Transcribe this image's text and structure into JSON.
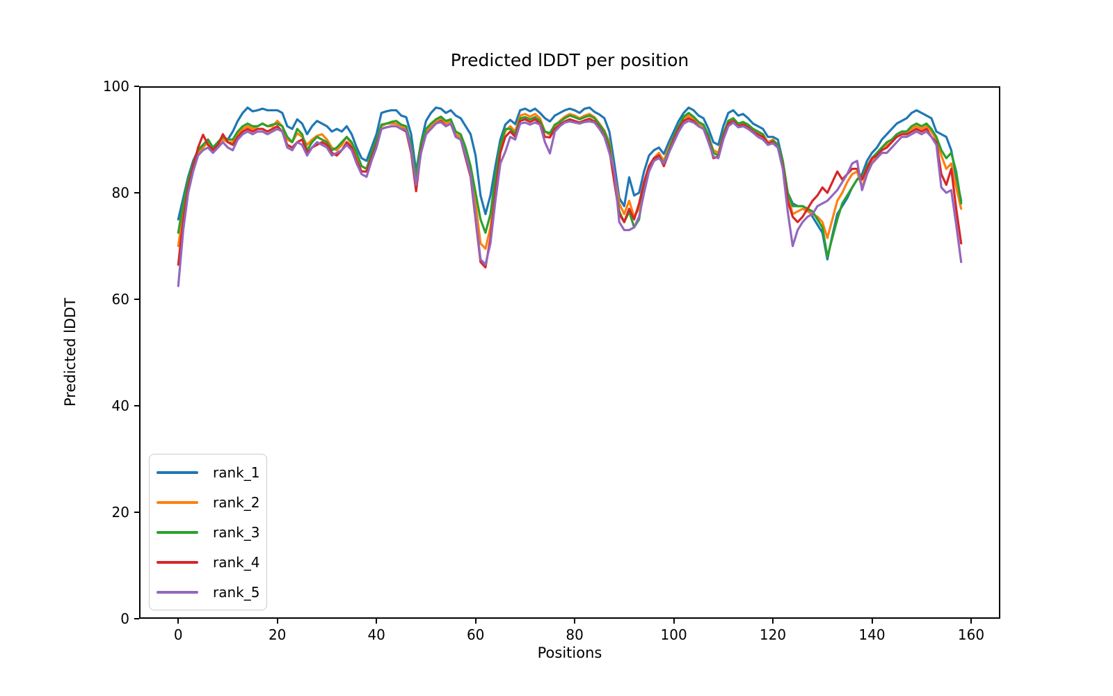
{
  "title": "Predicted lDDT per position",
  "xlabel": "Positions",
  "ylabel": "Predicted lDDT",
  "legend": {
    "position": "lower left",
    "entries": [
      {
        "label": "rank_1",
        "color": "#1f77b4"
      },
      {
        "label": "rank_2",
        "color": "#ff7f0e"
      },
      {
        "label": "rank_3",
        "color": "#2ca02c"
      },
      {
        "label": "rank_4",
        "color": "#d62728"
      },
      {
        "label": "rank_5",
        "color": "#9467bd"
      }
    ]
  },
  "chart_data": {
    "type": "line",
    "title": "Predicted lDDT per position",
    "xlabel": "Positions",
    "ylabel": "Predicted lDDT",
    "grid": false,
    "legend_position": "lower left",
    "xlim": [
      -7.9,
      165.9
    ],
    "ylim": [
      0,
      100
    ],
    "x_ticks": [
      0,
      20,
      40,
      60,
      80,
      100,
      120,
      140,
      160
    ],
    "y_ticks": [
      0,
      20,
      40,
      60,
      80,
      100
    ],
    "x": [
      0,
      1,
      2,
      3,
      4,
      5,
      6,
      7,
      8,
      9,
      10,
      11,
      12,
      13,
      14,
      15,
      16,
      17,
      18,
      19,
      20,
      21,
      22,
      23,
      24,
      25,
      26,
      27,
      28,
      29,
      30,
      31,
      32,
      33,
      34,
      35,
      36,
      37,
      38,
      39,
      40,
      41,
      42,
      43,
      44,
      45,
      46,
      47,
      48,
      49,
      50,
      51,
      52,
      53,
      54,
      55,
      56,
      57,
      58,
      59,
      60,
      61,
      62,
      63,
      64,
      65,
      66,
      67,
      68,
      69,
      70,
      71,
      72,
      73,
      74,
      75,
      76,
      77,
      78,
      79,
      80,
      81,
      82,
      83,
      84,
      85,
      86,
      87,
      88,
      89,
      90,
      91,
      92,
      93,
      94,
      95,
      96,
      97,
      98,
      99,
      100,
      101,
      102,
      103,
      104,
      105,
      106,
      107,
      108,
      109,
      110,
      111,
      112,
      113,
      114,
      115,
      116,
      117,
      118,
      119,
      120,
      121,
      122,
      123,
      124,
      125,
      126,
      127,
      128,
      129,
      130,
      131,
      132,
      133,
      134,
      135,
      136,
      137,
      138,
      139,
      140,
      141,
      142,
      143,
      144,
      145,
      146,
      147,
      148,
      149,
      150,
      151,
      152,
      153,
      154,
      155,
      156,
      157,
      158
    ],
    "series": [
      {
        "name": "rank_1",
        "color": "#1f77b4",
        "values": [
          75.0,
          79.0,
          83.0,
          86.0,
          88.0,
          89.0,
          90.0,
          88.5,
          89.5,
          90.5,
          90.0,
          91.5,
          93.5,
          95.0,
          96.0,
          95.3,
          95.5,
          95.8,
          95.5,
          95.5,
          95.5,
          95.0,
          92.5,
          92.0,
          93.8,
          93.0,
          91.0,
          92.5,
          93.5,
          93.0,
          92.5,
          91.5,
          92.0,
          91.5,
          92.5,
          91.0,
          88.5,
          86.5,
          86.0,
          88.5,
          91.0,
          95.0,
          95.3,
          95.5,
          95.5,
          94.5,
          94.2,
          91.0,
          84.0,
          89.5,
          93.5,
          95.0,
          96.0,
          95.8,
          95.0,
          95.5,
          94.5,
          94.0,
          92.5,
          91.0,
          87.0,
          79.5,
          76.0,
          79.5,
          85.0,
          90.0,
          92.8,
          93.7,
          92.9,
          95.5,
          95.8,
          95.3,
          95.8,
          95.0,
          94.0,
          93.4,
          94.5,
          95.0,
          95.5,
          95.8,
          95.5,
          95.0,
          95.8,
          96.0,
          95.2,
          94.7,
          94.0,
          91.5,
          85.5,
          79.0,
          77.5,
          82.9,
          79.5,
          80.0,
          84.0,
          87.0,
          88.0,
          88.5,
          87.3,
          89.5,
          91.5,
          93.5,
          95.0,
          96.0,
          95.5,
          94.5,
          94.0,
          92.0,
          89.5,
          89.0,
          92.5,
          95.0,
          95.5,
          94.5,
          94.8,
          94.0,
          93.0,
          92.5,
          92.0,
          90.5,
          90.5,
          90.0,
          86.0,
          80.0,
          78.0,
          77.5,
          77.5,
          77.0,
          75.5,
          74.0,
          72.5,
          67.5,
          72.0,
          76.0,
          77.5,
          79.0,
          81.0,
          82.5,
          83.5,
          86.0,
          87.5,
          88.5,
          90.0,
          91.0,
          92.0,
          93.0,
          93.5,
          94.0,
          95.0,
          95.5,
          95.0,
          94.5,
          94.0,
          91.5,
          91.0,
          90.5,
          88.0,
          83.0,
          78.5
        ]
      },
      {
        "name": "rank_2",
        "color": "#ff7f0e",
        "values": [
          70.0,
          76.5,
          81.5,
          85.0,
          87.5,
          88.5,
          89.5,
          88.0,
          89.0,
          90.0,
          89.5,
          89.5,
          91.0,
          92.0,
          92.5,
          92.0,
          92.5,
          93.0,
          92.5,
          92.5,
          93.5,
          92.5,
          90.0,
          89.5,
          91.2,
          90.5,
          89.0,
          90.0,
          90.7,
          91.0,
          90.0,
          88.5,
          88.0,
          89.0,
          90.5,
          89.0,
          87.0,
          85.0,
          84.5,
          87.0,
          89.5,
          92.5,
          93.0,
          93.0,
          93.0,
          92.5,
          92.0,
          88.5,
          82.0,
          89.0,
          91.5,
          92.5,
          93.5,
          94.0,
          93.0,
          93.5,
          91.0,
          90.5,
          87.5,
          84.0,
          78.0,
          70.5,
          69.5,
          73.5,
          81.0,
          88.0,
          91.6,
          92.5,
          91.5,
          94.5,
          94.8,
          94.3,
          94.8,
          94.0,
          91.5,
          90.9,
          92.5,
          93.5,
          94.3,
          94.8,
          94.5,
          94.0,
          94.5,
          94.8,
          94.2,
          93.0,
          91.7,
          89.5,
          83.5,
          78.0,
          76.0,
          78.5,
          75.5,
          77.0,
          82.0,
          85.0,
          86.5,
          87.5,
          86.0,
          88.5,
          90.5,
          92.5,
          94.0,
          94.5,
          94.0,
          93.0,
          92.5,
          90.5,
          88.0,
          87.5,
          91.0,
          93.5,
          94.0,
          92.8,
          93.2,
          92.5,
          92.0,
          91.5,
          91.0,
          89.5,
          90.0,
          89.0,
          85.5,
          79.5,
          76.0,
          76.5,
          77.0,
          76.5,
          76.0,
          75.5,
          74.5,
          71.5,
          75.0,
          78.5,
          80.0,
          82.0,
          83.5,
          84.0,
          81.0,
          84.0,
          86.0,
          87.0,
          88.5,
          89.0,
          89.5,
          90.5,
          91.0,
          91.5,
          92.0,
          92.5,
          92.0,
          92.5,
          91.5,
          90.0,
          87.0,
          84.5,
          85.5,
          81.0,
          77.0
        ]
      },
      {
        "name": "rank_3",
        "color": "#2ca02c",
        "values": [
          72.5,
          78.0,
          82.5,
          85.5,
          88.0,
          89.0,
          90.0,
          88.5,
          89.5,
          90.5,
          90.0,
          90.0,
          91.5,
          92.5,
          93.0,
          92.5,
          92.5,
          93.0,
          92.5,
          92.8,
          93.0,
          92.5,
          90.5,
          89.5,
          92.0,
          91.0,
          88.0,
          89.5,
          90.5,
          90.0,
          89.5,
          88.0,
          88.5,
          89.5,
          90.5,
          89.5,
          87.5,
          85.0,
          84.5,
          87.5,
          90.0,
          92.8,
          93.0,
          93.3,
          93.5,
          92.8,
          92.5,
          89.0,
          83.0,
          89.5,
          92.0,
          93.0,
          93.8,
          94.3,
          93.5,
          93.8,
          91.5,
          91.0,
          88.5,
          85.0,
          80.0,
          75.0,
          72.5,
          76.0,
          83.0,
          89.0,
          92.0,
          92.0,
          91.0,
          94.0,
          94.2,
          93.8,
          94.2,
          93.5,
          91.5,
          91.2,
          92.8,
          93.3,
          94.0,
          94.5,
          94.2,
          93.8,
          94.2,
          94.5,
          94.0,
          92.8,
          91.5,
          89.0,
          82.5,
          76.5,
          74.5,
          76.5,
          73.5,
          75.0,
          81.0,
          85.0,
          86.0,
          87.0,
          85.5,
          88.0,
          90.5,
          92.5,
          94.3,
          95.0,
          94.3,
          93.3,
          92.8,
          90.8,
          87.5,
          87.0,
          91.0,
          93.5,
          94.0,
          93.0,
          93.3,
          92.8,
          92.0,
          91.5,
          91.0,
          89.0,
          89.8,
          89.0,
          86.0,
          80.0,
          77.5,
          77.5,
          77.5,
          77.0,
          76.5,
          75.0,
          73.5,
          68.0,
          71.5,
          75.0,
          78.0,
          79.5,
          81.0,
          82.5,
          83.0,
          85.0,
          86.5,
          87.5,
          88.5,
          89.5,
          90.0,
          91.0,
          91.5,
          91.5,
          92.5,
          93.0,
          92.5,
          93.0,
          92.0,
          90.5,
          88.0,
          86.5,
          87.5,
          84.0,
          78.0
        ]
      },
      {
        "name": "rank_4",
        "color": "#d62728",
        "values": [
          66.5,
          75.0,
          81.0,
          85.0,
          88.5,
          90.9,
          89.0,
          88.0,
          89.0,
          91.0,
          89.5,
          89.0,
          90.5,
          91.5,
          92.0,
          91.5,
          92.0,
          92.0,
          91.5,
          92.0,
          92.5,
          91.5,
          89.0,
          88.5,
          89.5,
          90.0,
          87.5,
          88.5,
          89.0,
          89.5,
          89.0,
          87.5,
          87.0,
          88.0,
          89.5,
          88.5,
          86.0,
          84.0,
          84.0,
          86.5,
          89.0,
          92.0,
          92.3,
          92.5,
          92.5,
          92.0,
          91.5,
          87.5,
          80.3,
          88.0,
          91.0,
          92.0,
          93.0,
          93.5,
          92.5,
          93.0,
          90.5,
          90.0,
          86.5,
          83.0,
          75.0,
          67.0,
          66.0,
          71.5,
          80.0,
          87.5,
          90.5,
          91.5,
          90.5,
          93.5,
          93.8,
          93.3,
          93.8,
          93.0,
          90.5,
          90.4,
          92.0,
          92.8,
          93.4,
          93.8,
          93.5,
          93.2,
          93.6,
          93.9,
          93.4,
          92.2,
          90.7,
          88.0,
          82.0,
          76.0,
          74.5,
          77.0,
          75.0,
          78.0,
          82.0,
          85.0,
          86.5,
          87.0,
          85.0,
          87.5,
          90.0,
          92.0,
          93.5,
          94.0,
          93.5,
          92.5,
          92.0,
          90.0,
          86.5,
          86.8,
          90.5,
          93.0,
          93.5,
          92.5,
          92.8,
          92.3,
          91.5,
          91.0,
          90.5,
          89.3,
          89.5,
          88.5,
          85.0,
          78.5,
          75.5,
          74.5,
          75.5,
          77.0,
          78.5,
          79.5,
          81.0,
          80.0,
          82.0,
          84.0,
          82.5,
          83.5,
          84.5,
          84.5,
          82.5,
          84.5,
          86.5,
          87.0,
          88.0,
          88.5,
          89.5,
          90.5,
          91.0,
          91.0,
          91.5,
          92.0,
          91.5,
          92.0,
          90.5,
          89.5,
          83.5,
          81.5,
          84.5,
          77.0,
          70.5
        ]
      },
      {
        "name": "rank_5",
        "color": "#9467bd",
        "values": [
          62.5,
          73.0,
          80.0,
          84.0,
          87.0,
          88.0,
          88.5,
          87.5,
          88.5,
          89.5,
          88.5,
          88.0,
          90.0,
          91.0,
          91.5,
          91.0,
          91.5,
          91.5,
          91.0,
          91.5,
          92.0,
          91.5,
          88.5,
          88.0,
          89.5,
          89.0,
          87.0,
          88.5,
          89.5,
          89.0,
          88.5,
          87.0,
          87.5,
          88.0,
          89.0,
          88.0,
          85.5,
          83.5,
          83.0,
          86.0,
          88.5,
          92.0,
          92.3,
          92.5,
          92.5,
          92.0,
          91.8,
          88.0,
          81.5,
          87.5,
          91.0,
          92.0,
          93.0,
          93.3,
          92.5,
          93.0,
          90.5,
          90.0,
          87.0,
          83.5,
          75.5,
          67.5,
          66.5,
          70.5,
          78.5,
          85.5,
          87.7,
          90.5,
          90.0,
          93.0,
          93.2,
          92.8,
          93.2,
          92.8,
          89.5,
          87.4,
          91.5,
          92.5,
          93.2,
          93.4,
          93.2,
          93.0,
          93.3,
          93.4,
          93.2,
          92.0,
          90.5,
          87.5,
          84.0,
          74.5,
          73.0,
          73.0,
          73.5,
          75.5,
          80.0,
          84.0,
          86.0,
          86.5,
          85.5,
          87.5,
          89.5,
          91.5,
          93.0,
          93.5,
          93.2,
          92.5,
          92.0,
          89.5,
          86.8,
          86.5,
          90.0,
          92.5,
          93.2,
          92.3,
          92.5,
          92.0,
          91.3,
          90.5,
          90.0,
          89.0,
          89.3,
          88.5,
          84.5,
          76.5,
          70.0,
          73.0,
          74.5,
          75.5,
          76.0,
          77.5,
          78.0,
          78.5,
          79.5,
          80.5,
          82.0,
          83.5,
          85.5,
          86.0,
          80.5,
          83.5,
          85.5,
          86.5,
          87.5,
          87.5,
          88.5,
          89.5,
          90.5,
          90.5,
          91.0,
          91.5,
          91.0,
          91.5,
          90.5,
          89.0,
          81.0,
          80.0,
          80.5,
          74.0,
          67.0
        ]
      }
    ]
  }
}
